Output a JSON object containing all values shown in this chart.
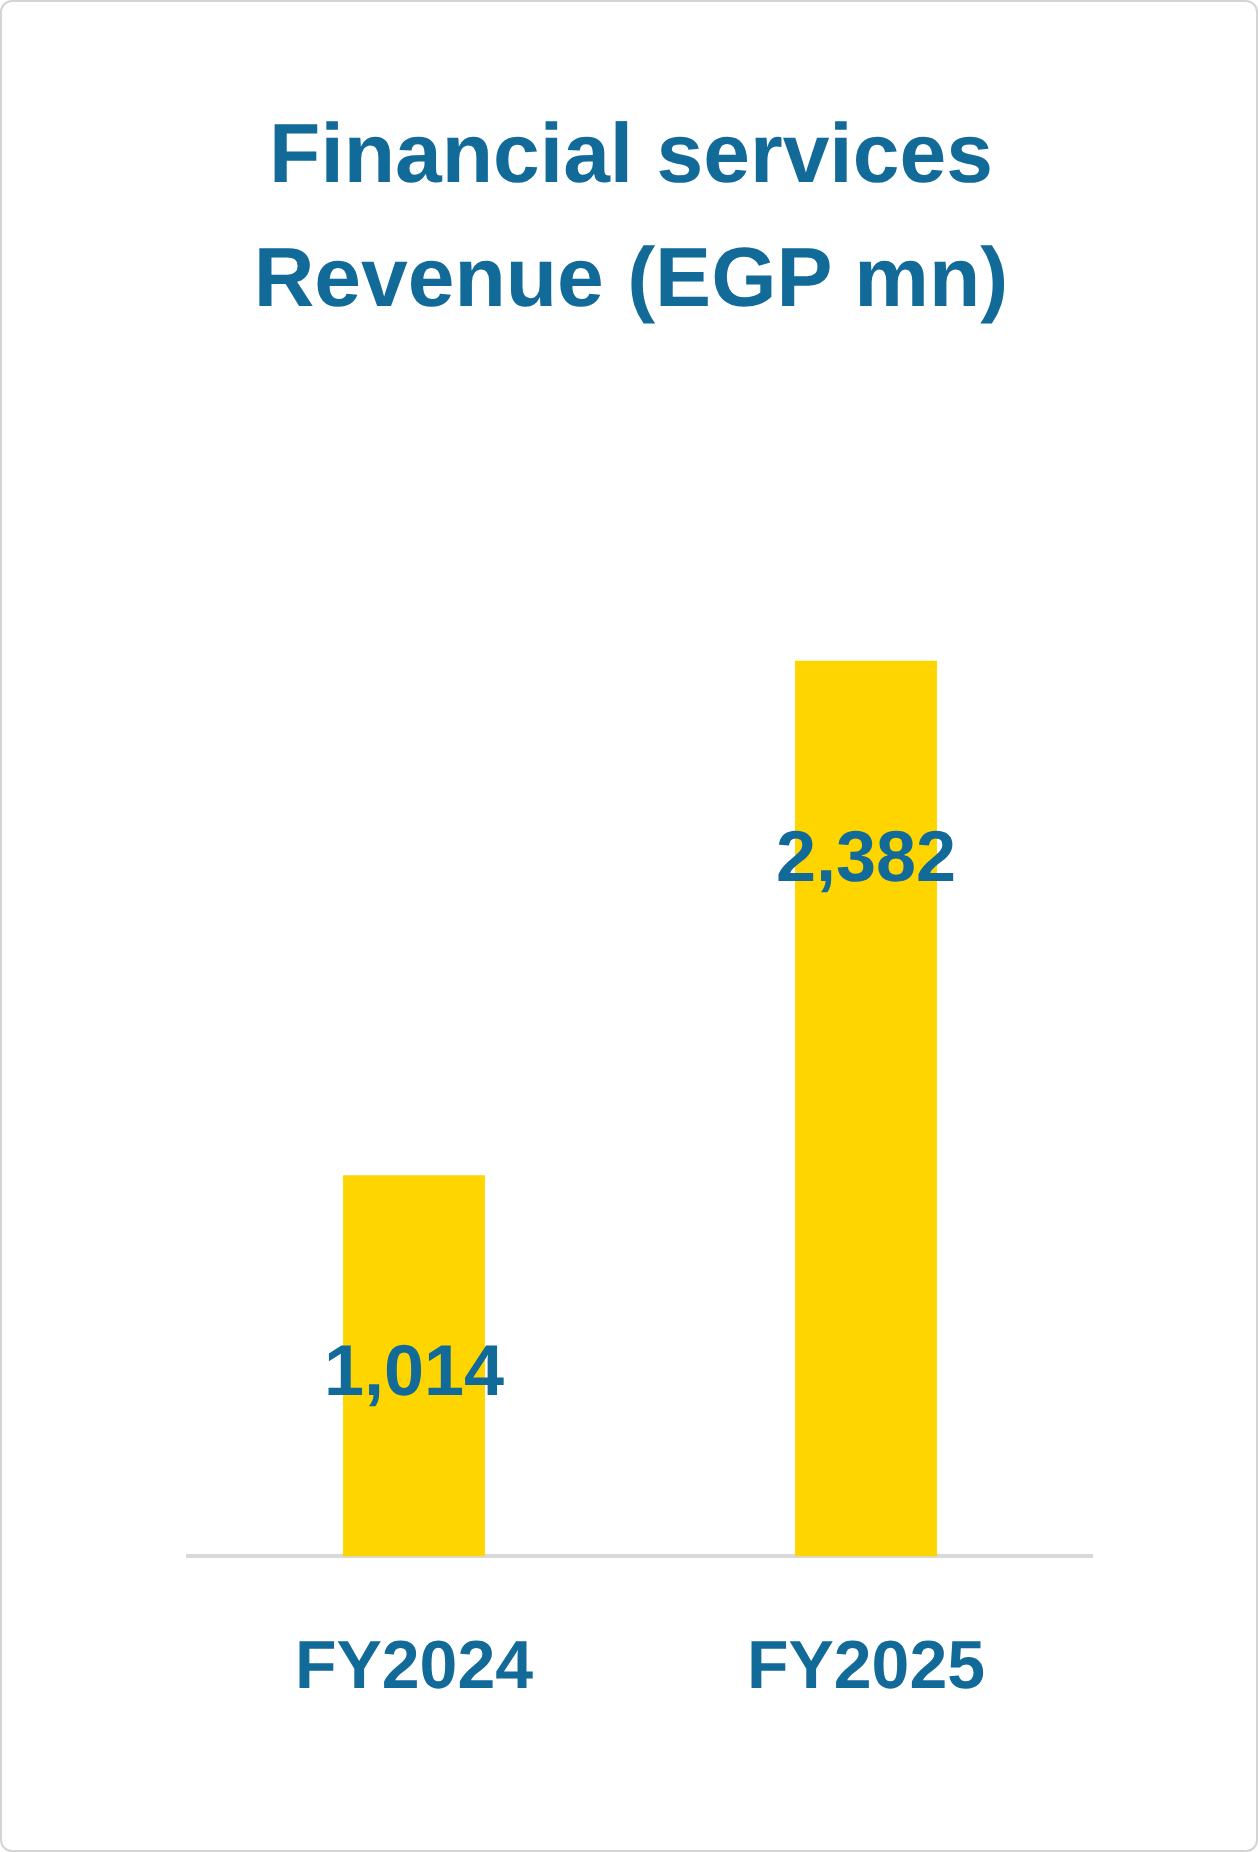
{
  "chart_data": {
    "type": "bar",
    "title": "Financial services Revenue (EGP mn)",
    "categories": [
      "FY2024",
      "FY2025"
    ],
    "values": [
      1014,
      2382
    ],
    "value_labels": [
      "1,014",
      "2,382"
    ],
    "color": "#ffd500",
    "tick_labels": "x"
  }
}
